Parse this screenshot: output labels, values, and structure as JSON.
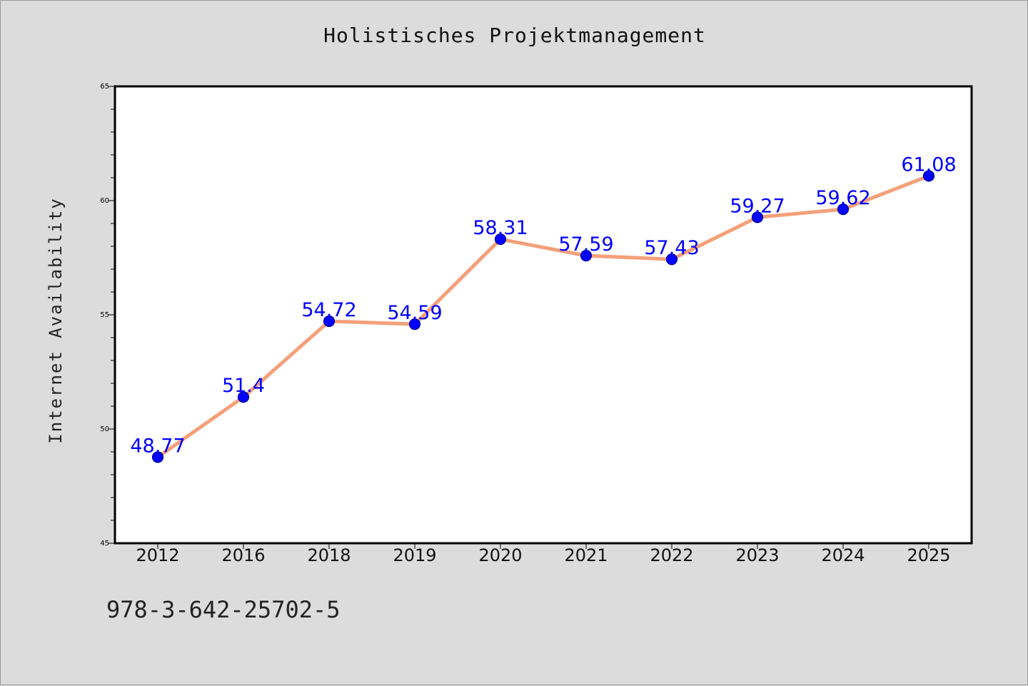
{
  "chart_data": {
    "type": "line",
    "title": "Holistisches Projektmanagement",
    "xlabel": "",
    "ylabel": "Internet Availability",
    "categories": [
      "2012",
      "2016",
      "2018",
      "2019",
      "2020",
      "2021",
      "2022",
      "2023",
      "2024",
      "2025"
    ],
    "series": [
      {
        "values": [
          48.77,
          51.4,
          54.72,
          54.59,
          58.31,
          57.59,
          57.43,
          59.27,
          59.62,
          61.08
        ]
      }
    ],
    "data_labels": [
      "48.77",
      "51.4",
      "54.72",
      "54.59",
      "58.31",
      "57.59",
      "57.43",
      "59.27",
      "59.62",
      "61.08"
    ],
    "ylim": [
      45,
      65
    ],
    "yticks": [
      "45",
      "50",
      "55",
      "60",
      "65"
    ],
    "grid": false,
    "legend": "none",
    "colors": {
      "line": "#f4a07a",
      "marker": "#0000ff",
      "marker_edge": "#00008b",
      "data_label": "#0000ff",
      "background": "#dcdcdc",
      "plot_area": "#ffffff"
    }
  },
  "footer": {
    "isbn": "978-3-642-25702-5"
  }
}
